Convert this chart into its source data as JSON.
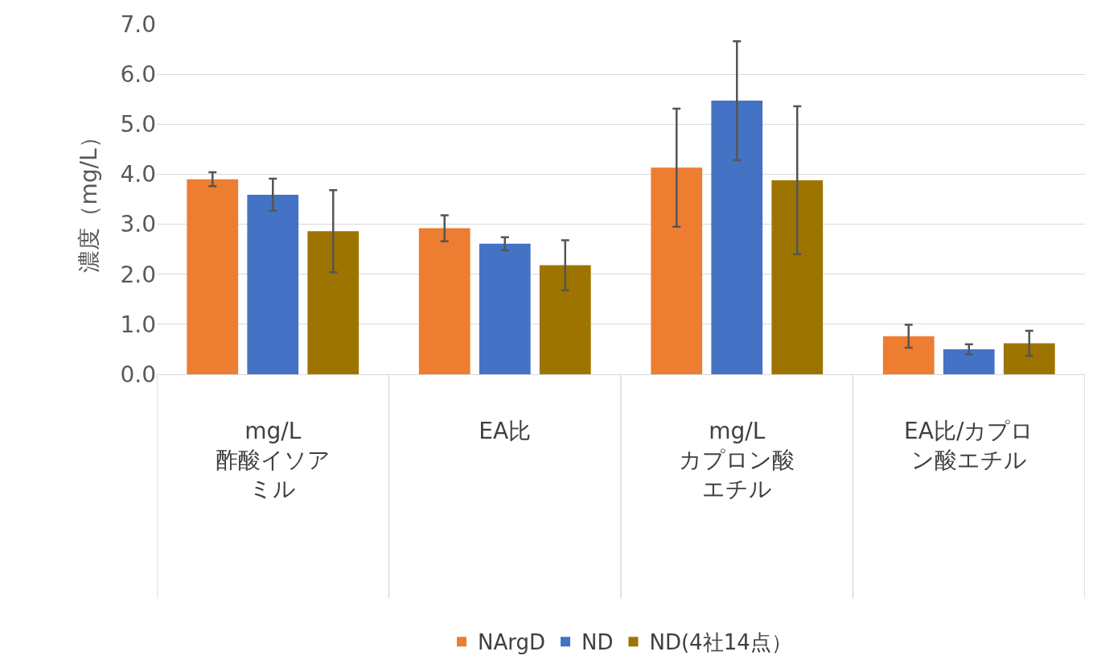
{
  "chart_data": {
    "type": "bar",
    "ylabel": "濃度（mg/L）",
    "categories": [
      "mg/L\n酢酸イソアミル",
      "EA比",
      "mg/L\nカプロン酸エチル",
      "EA比/カプロン酸エチル"
    ],
    "series": [
      {
        "name": "NArgD",
        "color": "#ed7d31",
        "values": [
          3.9,
          2.92,
          4.13,
          0.76
        ],
        "errors": [
          0.14,
          0.26,
          1.18,
          0.23
        ]
      },
      {
        "name": "ND",
        "color": "#4472c4",
        "values": [
          3.59,
          2.61,
          5.47,
          0.5
        ],
        "errors": [
          0.32,
          0.13,
          1.19,
          0.1
        ]
      },
      {
        "name": "ND(4社14点）",
        "color": "#9e7400",
        "values": [
          2.86,
          2.18,
          3.88,
          0.62
        ],
        "errors": [
          0.82,
          0.5,
          1.48,
          0.25
        ]
      }
    ],
    "ylim": [
      0,
      7
    ],
    "yticks": [
      {
        "value": 0,
        "label": "0.0"
      },
      {
        "value": 1,
        "label": "1.0"
      },
      {
        "value": 2,
        "label": "2.0"
      },
      {
        "value": 3,
        "label": "3.0"
      },
      {
        "value": 4,
        "label": "4.0"
      },
      {
        "value": 5,
        "label": "5.0"
      },
      {
        "value": 6,
        "label": "6.0"
      },
      {
        "value": 7,
        "label": "7.0"
      }
    ],
    "grid": "y",
    "legend": "bottom"
  }
}
